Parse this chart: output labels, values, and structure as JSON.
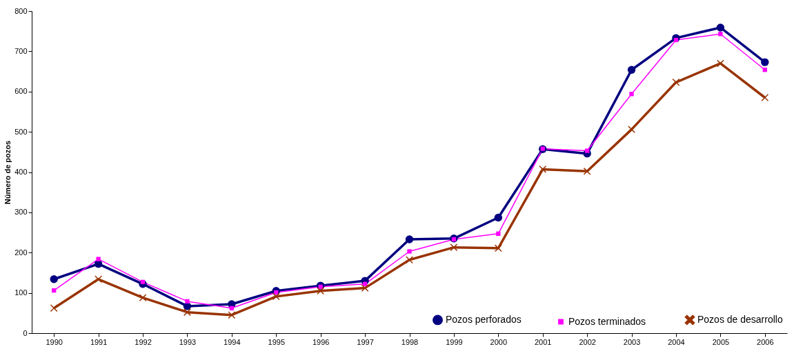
{
  "chart_data": {
    "type": "line",
    "ylabel": "Número de pozos",
    "categories": [
      "1990",
      "1991",
      "1992",
      "1993",
      "1994",
      "1995",
      "1996",
      "1997",
      "1998",
      "1999",
      "2000",
      "2001",
      "2002",
      "2003",
      "2004",
      "2005",
      "2006"
    ],
    "ylim": [
      0,
      800
    ],
    "yticks": [
      0,
      100,
      200,
      300,
      400,
      500,
      600,
      700,
      800
    ],
    "grid": false,
    "legend": "bottom right",
    "series": [
      {
        "name": "Pozos perforados",
        "color": "#000080",
        "marker": "circle",
        "values": [
          134,
          172,
          122,
          67,
          72,
          105,
          118,
          130,
          233,
          235,
          287,
          457,
          446,
          654,
          733,
          759,
          673
        ]
      },
      {
        "name": "Pozos terminados",
        "color": "#ff00ff",
        "marker": "square",
        "values": [
          106,
          184,
          127,
          79,
          62,
          101,
          115,
          122,
          203,
          233,
          247,
          458,
          453,
          594,
          728,
          743,
          654
        ]
      },
      {
        "name": "Pozos de desarrollo",
        "color": "#993300",
        "marker": "cross",
        "values": [
          62,
          134,
          88,
          52,
          45,
          91,
          105,
          112,
          182,
          213,
          211,
          407,
          402,
          506,
          623,
          670,
          585
        ]
      }
    ]
  }
}
